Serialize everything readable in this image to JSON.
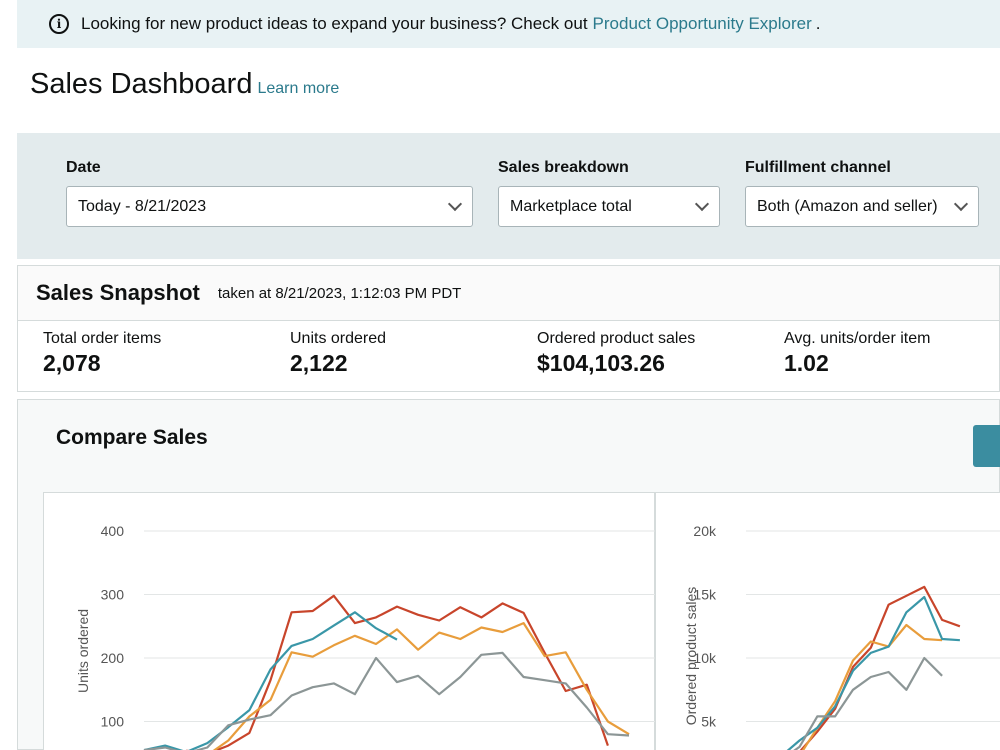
{
  "banner": {
    "text": "Looking for new product ideas to expand your business? Check out",
    "link": "Product Opportunity Explorer",
    "suffix": "."
  },
  "page": {
    "title": "Sales Dashboard",
    "learn_more": "Learn more"
  },
  "filters": {
    "date_label": "Date",
    "date_value": "Today - 8/21/2023",
    "breakdown_label": "Sales breakdown",
    "breakdown_value": "Marketplace total",
    "channel_label": "Fulfillment channel",
    "channel_value": "Both (Amazon and seller)"
  },
  "snapshot": {
    "title": "Sales Snapshot",
    "taken": "taken at 8/21/2023, 1:12:03 PM PDT",
    "metrics": [
      {
        "label": "Total order items",
        "value": "2,078"
      },
      {
        "label": "Units ordered",
        "value": "2,122"
      },
      {
        "label": "Ordered product sales",
        "value": "$104,103.26"
      },
      {
        "label": "Avg. units/order item",
        "value": "1.02"
      }
    ]
  },
  "compare": {
    "title": "Compare Sales"
  },
  "colors": {
    "red": "#c8452b",
    "orange": "#e89d3c",
    "teal": "#3a97a8",
    "gray": "#8c9696"
  },
  "chart_data": [
    {
      "type": "line",
      "ylabel": "Units ordered",
      "yticks": [
        "400",
        "300",
        "200",
        "100"
      ],
      "ylim": [
        0,
        400
      ],
      "grid": true,
      "series": [
        {
          "color": "red",
          "values": [
            null,
            null,
            54,
            49,
            62,
            82,
            165,
            272,
            274,
            298,
            255,
            264,
            281,
            268,
            259,
            280,
            264,
            286,
            271,
            208,
            148,
            158,
            62
          ]
        },
        {
          "color": "orange",
          "values": [
            null,
            null,
            52,
            47,
            70,
            108,
            134,
            209,
            202,
            220,
            235,
            222,
            245,
            213,
            240,
            230,
            248,
            241,
            255,
            203,
            209,
            150,
            100,
            80
          ]
        },
        {
          "color": "teal",
          "values": [
            55,
            62,
            52,
            66,
            91,
            118,
            182,
            219,
            230,
            251,
            272,
            247,
            229
          ]
        },
        {
          "color": "gray",
          "values": [
            55,
            59,
            50,
            59,
            94,
            103,
            110,
            141,
            154,
            160,
            143,
            200,
            162,
            172,
            143,
            170,
            205,
            208,
            170,
            165,
            160,
            122,
            80,
            78
          ]
        }
      ]
    },
    {
      "type": "line",
      "ylabel": "Ordered product sales",
      "yticks": [
        "20k",
        "15k",
        "10k",
        "5k"
      ],
      "ylim": [
        0,
        20000
      ],
      "grid": true,
      "series": [
        {
          "color": "red",
          "values": [
            2500,
            2200,
            1800,
            2600,
            4200,
            6000,
            9300,
            10800,
            14200,
            14900,
            15600,
            13000,
            12500
          ]
        },
        {
          "color": "orange",
          "values": [
            null,
            null,
            null,
            2300,
            4500,
            6600,
            9800,
            11300,
            10900,
            12600,
            11500,
            11400
          ]
        },
        {
          "color": "teal",
          "values": [
            null,
            1700,
            2300,
            3500,
            4500,
            6200,
            9000,
            10400,
            10900,
            13600,
            14800,
            11500,
            11400
          ]
        },
        {
          "color": "gray",
          "values": [
            null,
            null,
            2000,
            3000,
            5400,
            5400,
            7500,
            8500,
            8900,
            7500,
            10000,
            8600
          ]
        }
      ]
    }
  ]
}
